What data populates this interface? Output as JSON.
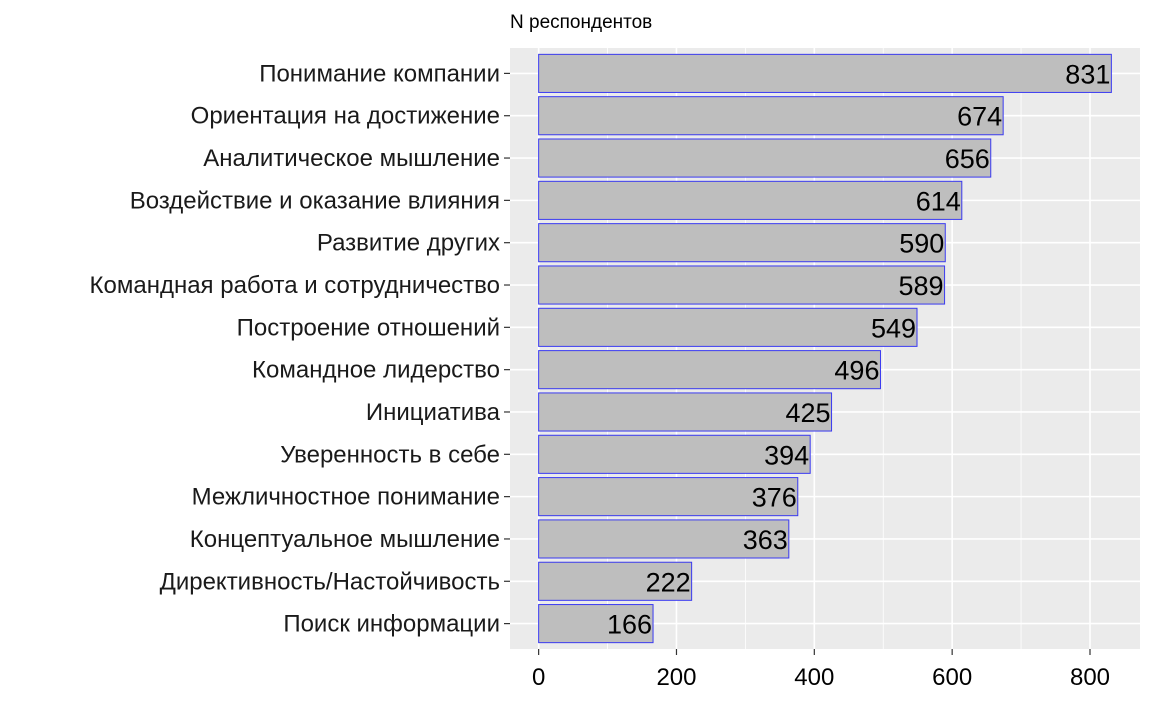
{
  "chart_data": {
    "type": "bar",
    "orientation": "horizontal",
    "title": "N респондентов",
    "xlabel": "",
    "ylabel": "",
    "categories": [
      "Понимание компании",
      "Ориентация на достижение",
      "Аналитическое мышление",
      "Воздействие и оказание влияния",
      "Развитие других",
      "Командная работа и сотрудничество",
      "Построение отношений",
      "Командное лидерство",
      "Инициатива",
      "Уверенность в себе",
      "Межличностное понимание",
      "Концептуальное мышление",
      "Директивность/Настойчивость",
      "Поиск информации"
    ],
    "values": [
      831,
      674,
      656,
      614,
      590,
      589,
      549,
      496,
      425,
      394,
      376,
      363,
      222,
      166
    ],
    "xlim": [
      -41.55,
      872.55
    ],
    "xticks": [
      0,
      200,
      400,
      600,
      800
    ],
    "grid": true,
    "colors": {
      "bar_fill": "#bebebe",
      "bar_outline": "#3a3af0",
      "panel": "#ebebeb",
      "grid": "#ffffff"
    }
  }
}
